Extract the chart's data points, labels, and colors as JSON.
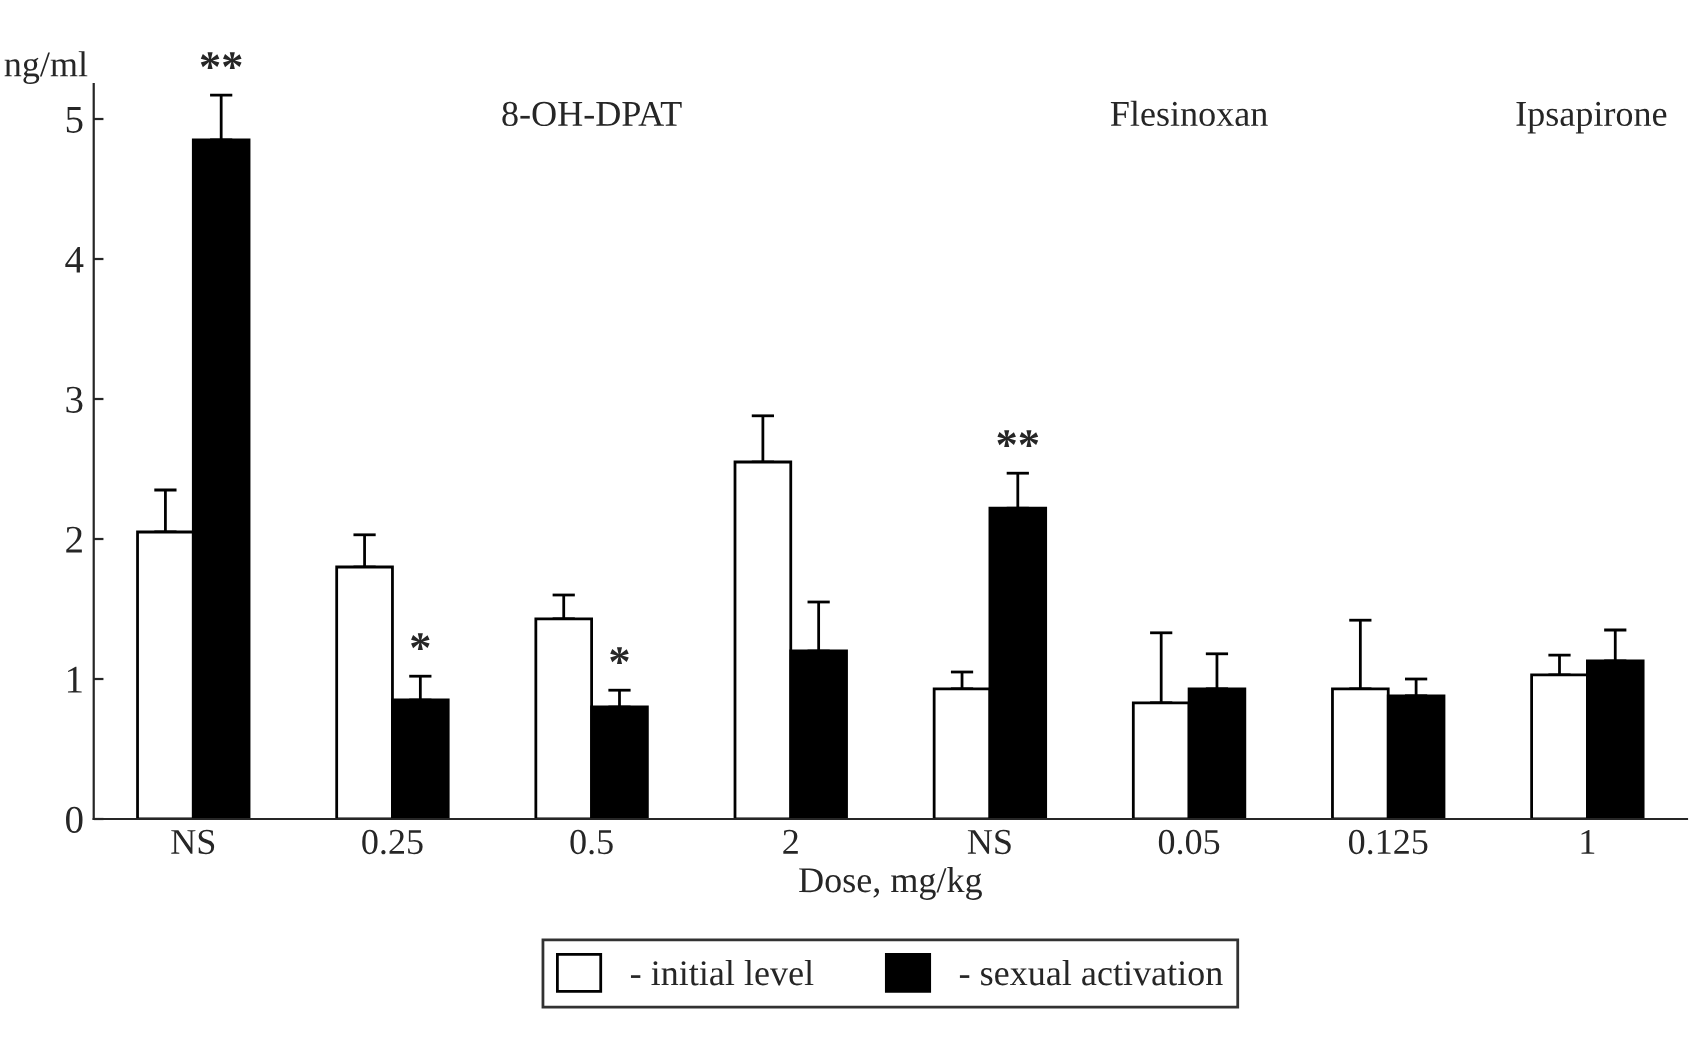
{
  "chart_data": {
    "type": "bar",
    "ylabel": "ng/ml",
    "xlabel": "Dose, mg/kg",
    "categories": [
      "NS",
      "0.25",
      "0.5",
      "2",
      "NS",
      "0.05",
      "0.125",
      "1"
    ],
    "series": [
      {
        "name": "- initial level",
        "color": "#ffffff",
        "values": [
          2.05,
          1.8,
          1.43,
          2.55,
          0.93,
          0.83,
          0.93,
          1.03
        ],
        "errors": [
          [
            2.05,
            2.35
          ],
          [
            1.8,
            2.03
          ],
          [
            1.43,
            1.6
          ],
          [
            2.55,
            2.88
          ],
          [
            0.93,
            1.05
          ],
          [
            0.83,
            1.33
          ],
          [
            0.93,
            1.42
          ],
          [
            1.03,
            1.17
          ]
        ]
      },
      {
        "name": "- sexual activation",
        "color": "#000000",
        "values": [
          4.85,
          0.85,
          0.8,
          1.2,
          2.22,
          0.93,
          0.88,
          1.13
        ],
        "errors": [
          [
            4.85,
            5.17
          ],
          [
            0.85,
            1.02
          ],
          [
            0.8,
            0.92
          ],
          [
            1.2,
            1.55
          ],
          [
            2.22,
            2.47
          ],
          [
            0.93,
            1.18
          ],
          [
            0.88,
            1.0
          ],
          [
            1.13,
            1.35
          ]
        ],
        "value_labels": [
          "**",
          "*",
          "*",
          null,
          "**",
          null,
          null,
          null
        ]
      }
    ],
    "annotations": [
      "8-OH-DPAT",
      "Flesinoxan",
      "Ipsapirone"
    ],
    "ylim": [
      0,
      5.25
    ],
    "yticks": [
      0,
      1,
      2,
      3,
      4,
      5
    ],
    "grid": false,
    "legend": "bottom"
  }
}
